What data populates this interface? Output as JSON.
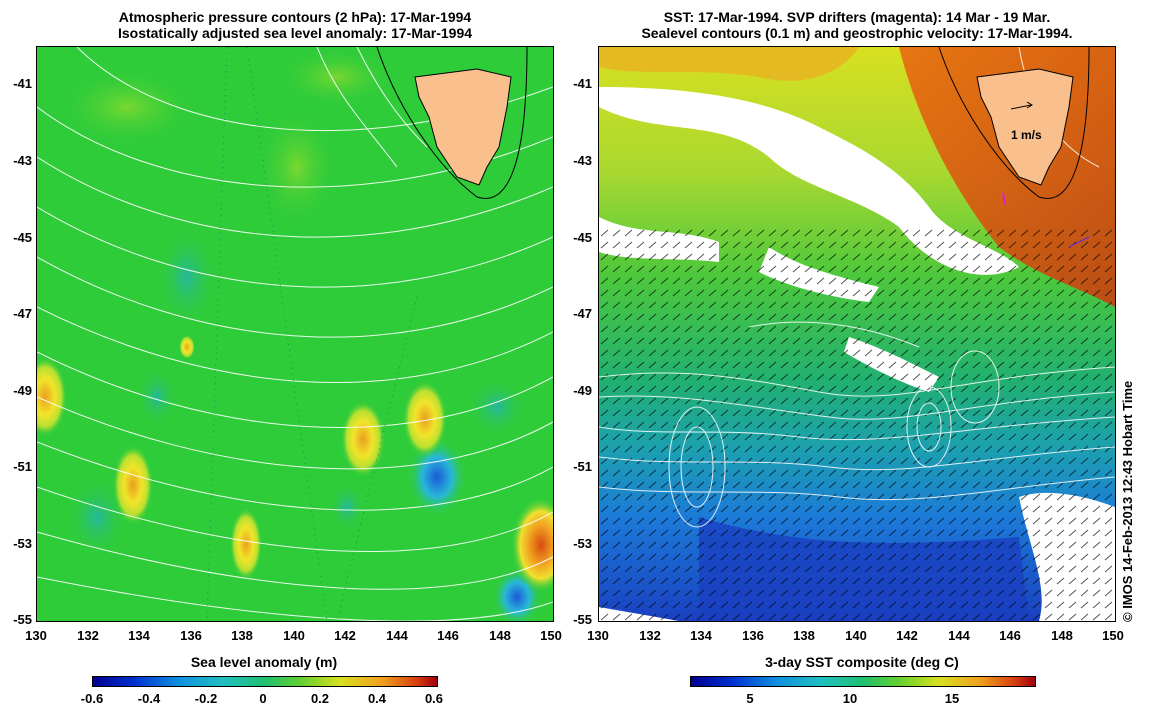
{
  "left_panel": {
    "title_line1": "Atmospheric pressure contours (2 hPa): 17-Mar-1994",
    "title_line2": "Isostatically adjusted sea level anomaly: 17-Mar-1994",
    "colorbar_title": "Sea level anomaly (m)",
    "colorbar_ticks": [
      "-0.6",
      "-0.4",
      "-0.2",
      "0",
      "0.2",
      "0.4",
      "0.6"
    ]
  },
  "right_panel": {
    "title_line1": "SST: 17-Mar-1994. SVP drifters (magenta): 14 Mar - 19 Mar.",
    "title_line2": "Sealevel contours (0.1 m) and geostrophic velocity: 17-Mar-1994.",
    "colorbar_title": "3-day SST composite (deg C)",
    "colorbar_ticks": [
      "5",
      "10",
      "15"
    ],
    "velocity_scale_label": "1 m/s"
  },
  "axes": {
    "y_ticks": [
      "-41",
      "-43",
      "-45",
      "-47",
      "-49",
      "-51",
      "-53",
      "-55"
    ],
    "x_ticks": [
      "130",
      "132",
      "134",
      "136",
      "138",
      "140",
      "142",
      "144",
      "146",
      "148",
      "150"
    ]
  },
  "credit": "© IMOS 14-Feb-2013 12:43 Hobart Time",
  "colors": {
    "land": "#f9c08e",
    "sla_background": "#2fcc3a",
    "sla_high": "#f4e224",
    "sst_warm": "#e07a10",
    "sst_cool": "#1a6fd8"
  }
}
